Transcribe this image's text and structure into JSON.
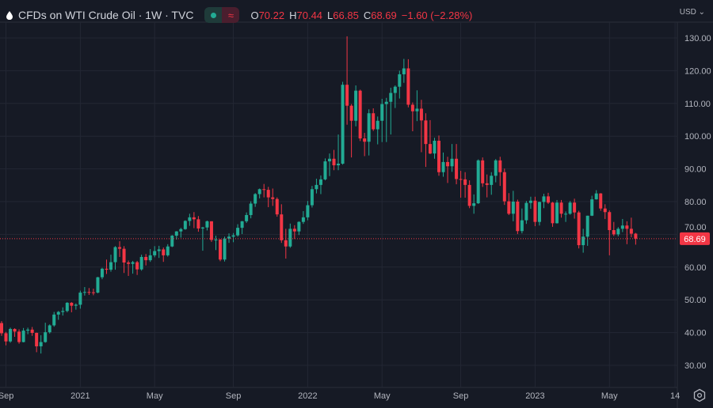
{
  "header": {
    "title": "CFDs on WTI Crude Oil · 1W · TVC",
    "badge_symbol": "≈",
    "ohlc": {
      "o_label": "O",
      "o": "70.22",
      "h_label": "H",
      "h": "70.44",
      "l_label": "L",
      "l": "66.85",
      "c_label": "C",
      "c": "68.69",
      "change": "−1.60 (−2.28%)"
    }
  },
  "currency_label": "USD ⌄",
  "colors": {
    "up": "#22ab94",
    "down": "#f23645",
    "background": "#161a25",
    "grid": "#232734",
    "text": "#b2b5be"
  },
  "chart_data": {
    "type": "candlestick",
    "title": "CFDs on WTI Crude Oil · 1W · TVC",
    "interval": "1W",
    "ylim": [
      24,
      135
    ],
    "y_ticks": [
      "30.00",
      "40.00",
      "50.00",
      "60.00",
      "70.00",
      "80.00",
      "90.00",
      "100.00",
      "110.00",
      "120.00",
      "130.00"
    ],
    "x_ticks": [
      {
        "label": "Sep",
        "week": 1
      },
      {
        "label": "2021",
        "week": 18
      },
      {
        "label": "May",
        "week": 35
      },
      {
        "label": "Sep",
        "week": 53
      },
      {
        "label": "2022",
        "week": 70
      },
      {
        "label": "May",
        "week": 87
      },
      {
        "label": "Sep",
        "week": 105
      },
      {
        "label": "2023",
        "week": 122
      },
      {
        "label": "May",
        "week": 139
      },
      {
        "label": "14",
        "week": 154
      }
    ],
    "last_price": "68.69",
    "grid": true,
    "candles_ohlc": [
      [
        42.9,
        43.5,
        39.0,
        39.8
      ],
      [
        39.8,
        40.2,
        36.1,
        37.3
      ],
      [
        37.3,
        41.5,
        36.9,
        41.1
      ],
      [
        41.1,
        41.3,
        38.7,
        40.3
      ],
      [
        40.3,
        41.0,
        36.6,
        37.1
      ],
      [
        37.1,
        41.4,
        37.0,
        40.6
      ],
      [
        40.6,
        41.5,
        39.5,
        40.9
      ],
      [
        40.9,
        41.7,
        39.0,
        39.9
      ],
      [
        39.9,
        40.0,
        34.0,
        35.8
      ],
      [
        35.8,
        39.2,
        33.6,
        37.1
      ],
      [
        37.1,
        43.0,
        36.9,
        40.1
      ],
      [
        40.1,
        42.5,
        39.7,
        42.2
      ],
      [
        42.2,
        46.3,
        41.8,
        45.5
      ],
      [
        45.5,
        46.6,
        43.9,
        46.3
      ],
      [
        46.3,
        47.7,
        45.2,
        46.6
      ],
      [
        46.6,
        49.3,
        46.2,
        49.1
      ],
      [
        49.1,
        49.3,
        46.2,
        48.2
      ],
      [
        48.2,
        48.9,
        47.0,
        48.5
      ],
      [
        48.5,
        52.8,
        47.3,
        52.2
      ],
      [
        52.2,
        53.9,
        51.3,
        52.4
      ],
      [
        52.4,
        53.6,
        51.5,
        52.3
      ],
      [
        52.3,
        53.4,
        51.4,
        52.2
      ],
      [
        52.2,
        57.0,
        52.0,
        56.9
      ],
      [
        56.9,
        59.8,
        56.3,
        59.5
      ],
      [
        59.5,
        62.3,
        57.9,
        59.2
      ],
      [
        59.2,
        63.8,
        58.6,
        61.5
      ],
      [
        61.5,
        66.4,
        59.2,
        66.1
      ],
      [
        66.1,
        67.9,
        63.1,
        65.6
      ],
      [
        65.6,
        66.4,
        58.2,
        61.4
      ],
      [
        61.4,
        62.0,
        57.3,
        61.0
      ],
      [
        61.0,
        61.9,
        58.0,
        61.5
      ],
      [
        61.5,
        61.9,
        57.6,
        59.3
      ],
      [
        59.3,
        63.8,
        58.9,
        63.1
      ],
      [
        63.1,
        64.0,
        60.5,
        62.1
      ],
      [
        62.1,
        65.5,
        61.6,
        63.6
      ],
      [
        63.6,
        66.4,
        63.0,
        64.9
      ],
      [
        64.9,
        66.5,
        62.8,
        65.4
      ],
      [
        65.4,
        66.0,
        61.6,
        63.6
      ],
      [
        63.6,
        67.0,
        63.2,
        66.3
      ],
      [
        66.3,
        69.8,
        66.1,
        69.6
      ],
      [
        69.6,
        71.0,
        68.4,
        70.9
      ],
      [
        70.9,
        72.0,
        69.0,
        71.6
      ],
      [
        71.6,
        74.3,
        71.4,
        74.1
      ],
      [
        74.1,
        76.3,
        72.6,
        75.2
      ],
      [
        75.2,
        76.8,
        71.9,
        74.6
      ],
      [
        74.6,
        75.6,
        70.8,
        71.8
      ],
      [
        71.8,
        72.3,
        65.0,
        72.1
      ],
      [
        72.1,
        74.2,
        71.2,
        74.0
      ],
      [
        74.0,
        74.0,
        67.7,
        68.3
      ],
      [
        68.3,
        69.6,
        65.2,
        68.4
      ],
      [
        68.4,
        68.6,
        61.8,
        62.3
      ],
      [
        62.3,
        69.3,
        61.7,
        68.7
      ],
      [
        68.7,
        70.3,
        67.4,
        69.3
      ],
      [
        69.3,
        70.4,
        67.6,
        69.7
      ],
      [
        69.7,
        73.1,
        69.3,
        72.0
      ],
      [
        72.0,
        74.1,
        70.1,
        74.0
      ],
      [
        74.0,
        76.7,
        73.5,
        75.9
      ],
      [
        75.9,
        80.1,
        74.9,
        79.4
      ],
      [
        79.4,
        82.6,
        78.4,
        82.3
      ],
      [
        82.3,
        84.0,
        81.0,
        83.8
      ],
      [
        83.8,
        85.4,
        81.3,
        83.6
      ],
      [
        83.6,
        84.5,
        78.3,
        81.3
      ],
      [
        81.3,
        84.0,
        78.7,
        80.8
      ],
      [
        80.8,
        81.3,
        75.4,
        76.1
      ],
      [
        76.1,
        79.2,
        67.4,
        68.2
      ],
      [
        68.2,
        71.7,
        62.6,
        66.3
      ],
      [
        66.3,
        73.3,
        65.9,
        71.7
      ],
      [
        71.7,
        72.8,
        68.6,
        70.9
      ],
      [
        70.9,
        74.0,
        69.8,
        73.8
      ],
      [
        73.8,
        77.1,
        73.2,
        75.2
      ],
      [
        75.2,
        80.2,
        74.3,
        78.9
      ],
      [
        78.9,
        84.8,
        78.2,
        83.8
      ],
      [
        83.8,
        87.0,
        82.5,
        85.1
      ],
      [
        85.1,
        88.0,
        82.3,
        86.8
      ],
      [
        86.8,
        93.2,
        86.5,
        92.3
      ],
      [
        92.3,
        94.7,
        87.8,
        93.1
      ],
      [
        93.1,
        95.8,
        89.6,
        91.1
      ],
      [
        91.1,
        100.5,
        89.6,
        91.6
      ],
      [
        91.6,
        116.6,
        91.3,
        115.7
      ],
      [
        115.7,
        130.5,
        103.5,
        109.3
      ],
      [
        109.3,
        109.8,
        93.5,
        104.7
      ],
      [
        104.7,
        115.5,
        103.0,
        113.9
      ],
      [
        113.9,
        114.2,
        98.5,
        99.3
      ],
      [
        99.3,
        101.0,
        93.9,
        98.3
      ],
      [
        98.3,
        108.2,
        94.1,
        107.0
      ],
      [
        107.0,
        108.5,
        101.6,
        102.1
      ],
      [
        102.1,
        106.0,
        97.5,
        104.7
      ],
      [
        104.7,
        111.4,
        98.2,
        109.8
      ],
      [
        109.8,
        111.7,
        98.2,
        110.5
      ],
      [
        110.5,
        114.8,
        100.5,
        113.2
      ],
      [
        113.2,
        115.5,
        108.6,
        115.1
      ],
      [
        115.1,
        120.0,
        111.5,
        118.9
      ],
      [
        118.9,
        123.6,
        116.3,
        120.7
      ],
      [
        120.7,
        123.5,
        108.8,
        109.6
      ],
      [
        109.6,
        110.3,
        101.5,
        107.6
      ],
      [
        107.6,
        114.0,
        104.6,
        108.4
      ],
      [
        108.4,
        111.1,
        95.1,
        104.8
      ],
      [
        104.8,
        107.0,
        90.6,
        97.6
      ],
      [
        97.6,
        104.9,
        94.5,
        94.7
      ],
      [
        94.7,
        99.5,
        93.1,
        98.6
      ],
      [
        98.6,
        100.2,
        87.9,
        89.0
      ],
      [
        89.0,
        95.0,
        87.6,
        92.1
      ],
      [
        92.1,
        93.7,
        85.7,
        90.8
      ],
      [
        90.8,
        97.6,
        89.1,
        93.1
      ],
      [
        93.1,
        97.6,
        85.3,
        86.9
      ],
      [
        86.9,
        89.4,
        81.2,
        86.8
      ],
      [
        86.8,
        89.0,
        81.2,
        85.1
      ],
      [
        85.1,
        86.5,
        78.0,
        78.7
      ],
      [
        78.7,
        82.2,
        76.3,
        79.5
      ],
      [
        79.5,
        92.9,
        79.3,
        92.6
      ],
      [
        92.6,
        93.5,
        84.5,
        85.6
      ],
      [
        85.6,
        88.3,
        81.3,
        85.1
      ],
      [
        85.1,
        89.0,
        82.1,
        87.9
      ],
      [
        87.9,
        93.0,
        85.9,
        92.6
      ],
      [
        92.6,
        93.7,
        84.8,
        89.0
      ],
      [
        89.0,
        90.1,
        79.0,
        80.1
      ],
      [
        80.1,
        82.6,
        75.9,
        76.3
      ],
      [
        76.3,
        83.3,
        74.0,
        80.0
      ],
      [
        80.0,
        80.6,
        70.1,
        71.0
      ],
      [
        71.0,
        77.9,
        70.3,
        74.3
      ],
      [
        74.3,
        80.2,
        73.2,
        79.6
      ],
      [
        79.6,
        81.5,
        77.8,
        80.3
      ],
      [
        80.3,
        81.5,
        72.5,
        73.8
      ],
      [
        73.8,
        80.0,
        72.7,
        79.9
      ],
      [
        79.9,
        82.4,
        78.0,
        81.6
      ],
      [
        81.6,
        82.7,
        79.3,
        79.7
      ],
      [
        79.7,
        79.9,
        72.3,
        73.4
      ],
      [
        73.4,
        80.5,
        73.3,
        79.7
      ],
      [
        79.7,
        80.5,
        75.1,
        76.3
      ],
      [
        76.3,
        77.0,
        73.8,
        76.3
      ],
      [
        76.3,
        80.2,
        76.0,
        79.7
      ],
      [
        79.7,
        80.9,
        74.8,
        76.7
      ],
      [
        76.7,
        77.2,
        65.7,
        66.7
      ],
      [
        66.7,
        71.7,
        64.4,
        69.3
      ],
      [
        69.3,
        75.7,
        66.5,
        75.7
      ],
      [
        75.7,
        81.8,
        75.6,
        80.7
      ],
      [
        80.7,
        83.5,
        80.6,
        82.5
      ],
      [
        82.5,
        82.6,
        77.2,
        77.9
      ],
      [
        77.9,
        79.2,
        74.7,
        76.8
      ],
      [
        76.8,
        77.3,
        63.6,
        71.3
      ],
      [
        71.3,
        73.8,
        69.5,
        70.0
      ],
      [
        70.0,
        72.2,
        69.4,
        71.7
      ],
      [
        71.7,
        74.7,
        70.7,
        72.7
      ],
      [
        72.7,
        74.0,
        67.0,
        71.7
      ],
      [
        71.7,
        75.1,
        69.1,
        70.2
      ],
      [
        70.22,
        70.44,
        66.85,
        68.69
      ]
    ]
  }
}
